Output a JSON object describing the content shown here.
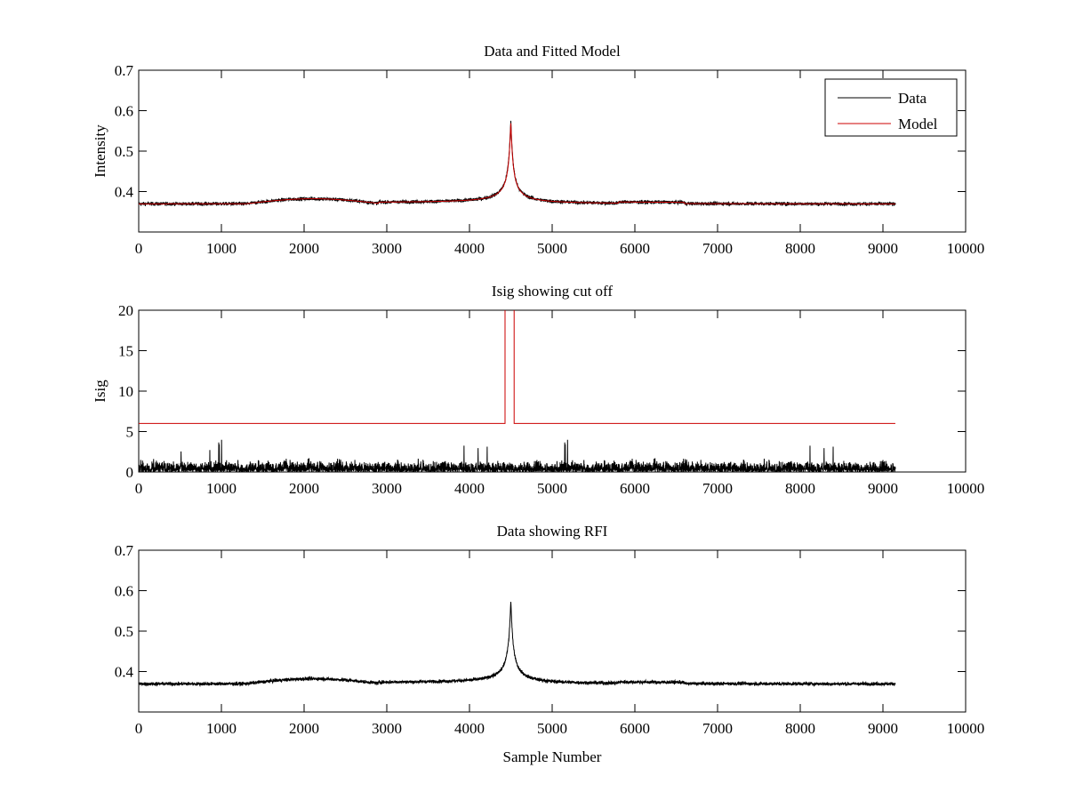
{
  "chart_data": [
    {
      "type": "line",
      "title": "Data and Fitted Model",
      "xlabel": "",
      "ylabel": "Intensity",
      "xlim": [
        0,
        10000
      ],
      "ylim": [
        0.3,
        0.7
      ],
      "xticks": [
        "0",
        "1000",
        "2000",
        "3000",
        "4000",
        "5000",
        "6000",
        "7000",
        "8000",
        "9000",
        "10000"
      ],
      "yticks": [
        "0.4",
        "0.5",
        "0.6",
        "0.7"
      ],
      "legend": {
        "location": "top-right",
        "entries": [
          "Data",
          "Model"
        ]
      },
      "series": [
        {
          "name": "Data",
          "color": "#000000",
          "x_range": [
            0,
            9150
          ],
          "baseline": 0.375,
          "noise": 0.004,
          "peak_x": 4500,
          "peak_y": 0.58
        },
        {
          "name": "Model",
          "color": "#cc0000",
          "x_range": [
            0,
            9150
          ],
          "baseline": 0.375,
          "peak_x": 4500,
          "peak_y": 0.575
        }
      ]
    },
    {
      "type": "line",
      "title": "Isig showing cut off",
      "xlabel": "",
      "ylabel": "Isig",
      "xlim": [
        0,
        10000
      ],
      "ylim": [
        0,
        20
      ],
      "xticks": [
        "0",
        "1000",
        "2000",
        "3000",
        "4000",
        "5000",
        "6000",
        "7000",
        "8000",
        "9000",
        "10000"
      ],
      "yticks": [
        "0",
        "5",
        "10",
        "15",
        "20"
      ],
      "series": [
        {
          "name": "Isig",
          "color": "#000000",
          "x_range": [
            0,
            9150
          ],
          "typical_max": 2.5,
          "max": 4
        },
        {
          "name": "Cut off",
          "color": "#cc0000",
          "x_range": [
            0,
            9150
          ],
          "level": 6,
          "spike_x": [
            4430,
            4540
          ],
          "spike_level": 20
        }
      ]
    },
    {
      "type": "line",
      "title": "Data showing RFI",
      "xlabel": "Sample Number",
      "ylabel": "",
      "xlim": [
        0,
        10000
      ],
      "ylim": [
        0.3,
        0.7
      ],
      "xticks": [
        "0",
        "1000",
        "2000",
        "3000",
        "4000",
        "5000",
        "6000",
        "7000",
        "8000",
        "9000",
        "10000"
      ],
      "yticks": [
        "0.4",
        "0.5",
        "0.6",
        "0.7"
      ],
      "series": [
        {
          "name": "Data",
          "color": "#000000",
          "x_range": [
            0,
            9150
          ],
          "baseline": 0.375,
          "noise": 0.004,
          "peak_x": 4500,
          "peak_y": 0.58
        }
      ]
    }
  ]
}
